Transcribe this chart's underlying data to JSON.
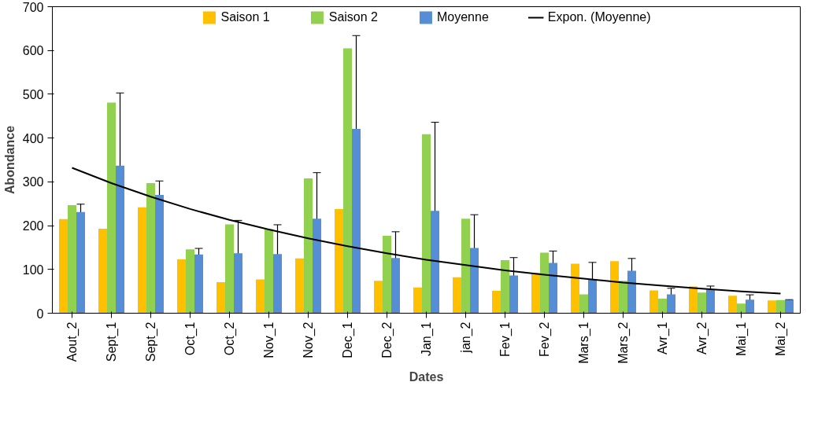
{
  "chart_data": {
    "type": "bar",
    "xlabel": "Dates",
    "ylabel": "Abondance",
    "categories": [
      "Aout_2",
      "Sept_1",
      "Sept_2",
      "Oct_1",
      "Oct_2",
      "Nov_1",
      "Nov_2",
      "Dec_1",
      "Dec_2",
      "Jan_1",
      "jan_2",
      "Fev_1",
      "Fev_2",
      "Mars_1",
      "Mars_2",
      "Avr_1",
      "Avr_2",
      "Mai_1",
      "Mai_2"
    ],
    "series": [
      {
        "name": "Saison 1",
        "color": "#ffc000",
        "values": [
          215,
          193,
          242,
          123,
          71,
          77,
          125,
          238,
          74,
          59,
          82,
          51,
          92,
          113,
          119,
          52,
          61,
          40,
          29
        ]
      },
      {
        "name": "Saison 2",
        "color": "#92d050",
        "values": [
          247,
          481,
          297,
          146,
          203,
          192,
          308,
          605,
          177,
          409,
          216,
          121,
          138,
          43,
          74,
          33,
          47,
          22,
          30
        ]
      },
      {
        "name": "Moyenne",
        "color": "#558ed5",
        "values": [
          231,
          337,
          270,
          134,
          137,
          135,
          216,
          421,
          126,
          234,
          149,
          86,
          115,
          78,
          97,
          43,
          54,
          31,
          30
        ],
        "errors": [
          18,
          166,
          32,
          14,
          75,
          67,
          105,
          213,
          60,
          202,
          76,
          41,
          27,
          38,
          28,
          14,
          8,
          11,
          1
        ]
      },
      {
        "name": "Expon. (Moyenne)",
        "type": "line",
        "color": "#000000",
        "values": [
          332,
          297,
          266,
          238,
          213,
          191,
          171,
          153,
          137,
          122,
          110,
          98,
          88,
          79,
          70,
          63,
          56,
          50,
          45
        ]
      }
    ],
    "ylim": [
      0,
      700
    ],
    "yticks": [
      0,
      100,
      200,
      300,
      400,
      500,
      600,
      700
    ],
    "grid": false,
    "legend": "top",
    "marker": "none",
    "line_style": "solid"
  }
}
